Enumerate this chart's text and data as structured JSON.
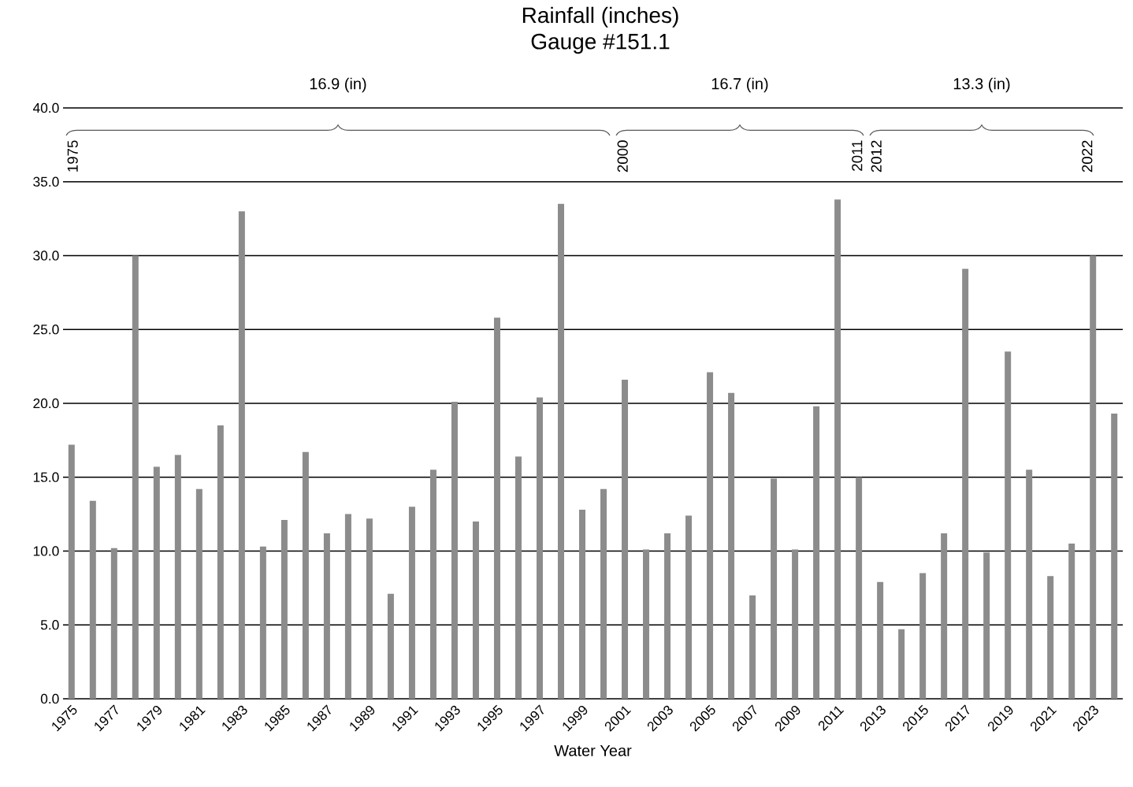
{
  "chart_data": {
    "type": "bar",
    "title": "Rainfall (inches)",
    "subtitle": "Gauge #151.1",
    "xlabel": "Water Year",
    "x": [
      1975,
      1976,
      1977,
      1978,
      1979,
      1980,
      1981,
      1982,
      1983,
      1984,
      1985,
      1986,
      1987,
      1988,
      1989,
      1990,
      1991,
      1992,
      1993,
      1994,
      1995,
      1996,
      1997,
      1998,
      1999,
      2000,
      2001,
      2002,
      2003,
      2004,
      2005,
      2006,
      2007,
      2008,
      2009,
      2010,
      2011,
      2012,
      2013,
      2014,
      2015,
      2016,
      2017,
      2018,
      2019,
      2020,
      2021,
      2022,
      2023,
      2024
    ],
    "values": [
      17.2,
      13.4,
      10.2,
      30.0,
      15.7,
      16.5,
      14.2,
      18.5,
      33.0,
      10.3,
      12.1,
      16.7,
      11.2,
      12.5,
      12.2,
      7.1,
      13.0,
      15.5,
      20.1,
      12.0,
      25.8,
      16.4,
      20.4,
      33.5,
      12.8,
      14.2,
      21.6,
      10.1,
      11.2,
      12.4,
      22.1,
      20.7,
      7.0,
      14.9,
      10.1,
      19.8,
      33.8,
      15.0,
      7.9,
      4.7,
      8.5,
      11.2,
      29.1,
      9.9,
      23.5,
      15.5,
      8.3,
      10.5,
      30.0,
      19.3
    ],
    "color": "#8c8c8c",
    "xlim": [
      1974.6,
      2024.4
    ],
    "xticks": [
      1975,
      1977,
      1979,
      1981,
      1983,
      1985,
      1987,
      1989,
      1991,
      1993,
      1995,
      1997,
      1999,
      2001,
      2003,
      2005,
      2007,
      2009,
      2011,
      2013,
      2015,
      2017,
      2019,
      2021,
      2023
    ],
    "ylim": [
      0,
      40
    ],
    "yticks": [
      {
        "value": 0,
        "label": "0.0"
      },
      {
        "value": 5,
        "label": "5.0"
      },
      {
        "value": 10,
        "label": "10.0"
      },
      {
        "value": 15,
        "label": "15.0"
      },
      {
        "value": 20,
        "label": "20.0"
      },
      {
        "value": 25,
        "label": "25.0"
      },
      {
        "value": 30,
        "label": "30.0"
      },
      {
        "value": 35,
        "label": "35.0"
      },
      {
        "value": 40,
        "label": "40.0"
      }
    ],
    "grid": "y",
    "annotations": [
      "16.9 (in)",
      "16.7 (in)",
      "13.3 (in)",
      "1975",
      "2000",
      "2011",
      "2012",
      "2022"
    ]
  }
}
